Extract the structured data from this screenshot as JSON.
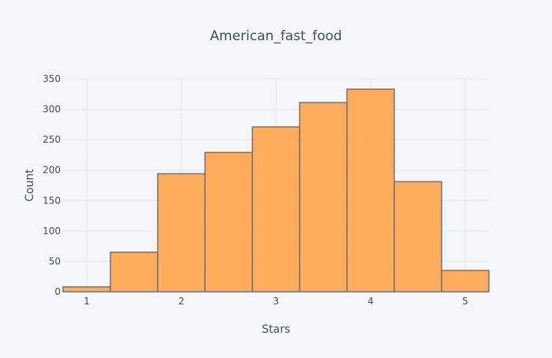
{
  "chart_data": {
    "type": "bar",
    "title": "American_fast_food",
    "xlabel": "Stars",
    "ylabel": "Count",
    "bin_edges": [
      0.75,
      1.25,
      1.75,
      2.25,
      2.75,
      3.25,
      3.75,
      4.25,
      4.75,
      5.25
    ],
    "counts": [
      8,
      65,
      194,
      229,
      271,
      311,
      333,
      181,
      35
    ],
    "xlim": [
      0.75,
      5.25
    ],
    "ylim": [
      0,
      350
    ],
    "x_ticks": [
      1,
      2,
      3,
      4,
      5
    ],
    "y_ticks": [
      0,
      50,
      100,
      150,
      200,
      250,
      300,
      350
    ],
    "grid": true,
    "colors": {
      "background": "#f5f6f9",
      "bar_fill": "#ffa54f",
      "bar_stroke": "#6b7481",
      "grid": "#e3e7ee",
      "text": "#444c5a"
    }
  }
}
